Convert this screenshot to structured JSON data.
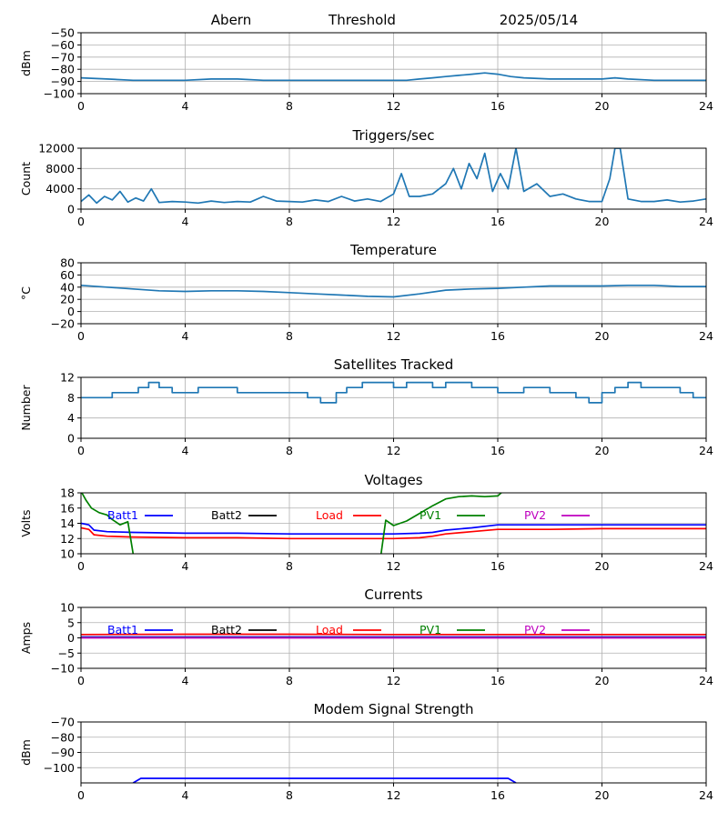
{
  "header": {
    "station": "Abern",
    "threshold_label": "Threshold",
    "date": "2025/05/14"
  },
  "colors": {
    "main": "#1f77b4",
    "batt1": "#0000ff",
    "batt2": "#000000",
    "load": "#ff0000",
    "pv1": "#008000",
    "pv2": "#bf00bf",
    "grid": "#b0b0b0"
  },
  "chart_data": [
    {
      "type": "line",
      "title": "",
      "ylabel": "dBm",
      "xlim": [
        0,
        24
      ],
      "ylim": [
        -100,
        -50
      ],
      "xticks": [
        0,
        4,
        8,
        12,
        16,
        20,
        24
      ],
      "yticks": [
        -100,
        -90,
        -80,
        -70,
        -60,
        -50
      ],
      "grid": true,
      "series": [
        {
          "color": "#1f77b4",
          "x": [
            0,
            1,
            2,
            3,
            4,
            5,
            6,
            7,
            8,
            9,
            10,
            11,
            12,
            12.5,
            13,
            13.5,
            14,
            14.5,
            15,
            15.5,
            16,
            16.5,
            17,
            18,
            19,
            20,
            20.5,
            21,
            22,
            23,
            24
          ],
          "y": [
            -87,
            -88,
            -89,
            -89,
            -89,
            -88,
            -88,
            -89,
            -89,
            -89,
            -89,
            -89,
            -89,
            -89,
            -88,
            -87,
            -86,
            -85,
            -84,
            -83,
            -84,
            -86,
            -87,
            -88,
            -88,
            -88,
            -87,
            -88,
            -89,
            -89,
            -89
          ]
        }
      ]
    },
    {
      "type": "line",
      "title": "Triggers/sec",
      "ylabel": "Count",
      "xlim": [
        0,
        24
      ],
      "ylim": [
        0,
        12000
      ],
      "xticks": [
        0,
        4,
        8,
        12,
        16,
        20,
        24
      ],
      "yticks": [
        0,
        4000,
        8000,
        12000
      ],
      "grid": true,
      "series": [
        {
          "color": "#1f77b4",
          "x": [
            0,
            0.3,
            0.6,
            0.9,
            1.2,
            1.5,
            1.8,
            2.1,
            2.4,
            2.7,
            3,
            3.5,
            4,
            4.5,
            5,
            5.5,
            6,
            6.5,
            7,
            7.5,
            8,
            8.5,
            9,
            9.5,
            10,
            10.5,
            11,
            11.5,
            12,
            12.3,
            12.6,
            13,
            13.5,
            14,
            14.3,
            14.6,
            14.9,
            15.2,
            15.5,
            15.8,
            16.1,
            16.4,
            16.7,
            17,
            17.5,
            18,
            18.5,
            19,
            19.5,
            20,
            20.3,
            20.5,
            20.7,
            21,
            21.5,
            22,
            22.5,
            23,
            23.5,
            24
          ],
          "y": [
            1500,
            2800,
            1200,
            2500,
            1800,
            3500,
            1400,
            2200,
            1600,
            4000,
            1300,
            1500,
            1400,
            1200,
            1600,
            1300,
            1500,
            1400,
            2500,
            1600,
            1500,
            1400,
            1800,
            1500,
            2500,
            1600,
            2000,
            1500,
            3000,
            7000,
            2500,
            2500,
            3000,
            5000,
            8000,
            4000,
            9000,
            6000,
            11000,
            3500,
            7000,
            4000,
            12000,
            3500,
            5000,
            2500,
            3000,
            2000,
            1500,
            1500,
            6000,
            12000,
            12000,
            2000,
            1500,
            1500,
            1800,
            1400,
            1600,
            2000
          ]
        }
      ]
    },
    {
      "type": "line",
      "title": "Temperature",
      "ylabel": "°C",
      "xlim": [
        0,
        24
      ],
      "ylim": [
        -20,
        80
      ],
      "xticks": [
        0,
        4,
        8,
        12,
        16,
        20,
        24
      ],
      "yticks": [
        -20,
        0,
        20,
        40,
        60,
        80
      ],
      "grid": true,
      "series": [
        {
          "color": "#1f77b4",
          "x": [
            0,
            1,
            2,
            3,
            4,
            5,
            6,
            7,
            8,
            9,
            10,
            11,
            12,
            13,
            14,
            15,
            16,
            17,
            18,
            19,
            20,
            21,
            22,
            23,
            24
          ],
          "y": [
            43,
            40,
            37,
            34,
            33,
            34,
            34,
            33,
            31,
            29,
            27,
            25,
            24,
            29,
            35,
            37,
            38,
            40,
            42,
            42,
            42,
            43,
            43,
            41,
            41
          ]
        }
      ]
    },
    {
      "type": "line",
      "title": "Satellites Tracked",
      "ylabel": "Number",
      "xlim": [
        0,
        24
      ],
      "ylim": [
        0,
        12
      ],
      "xticks": [
        0,
        4,
        8,
        12,
        16,
        20,
        24
      ],
      "yticks": [
        0,
        4,
        8,
        12
      ],
      "grid": true,
      "series": [
        {
          "color": "#1f77b4",
          "step": true,
          "x": [
            0,
            0.7,
            1.2,
            1.8,
            2.2,
            2.6,
            3.0,
            3.5,
            4.0,
            4.5,
            5.0,
            5.5,
            6.0,
            6.5,
            7.0,
            7.5,
            8.0,
            8.7,
            9.2,
            9.8,
            10.2,
            10.8,
            11.5,
            12.0,
            12.5,
            13.0,
            13.5,
            14.0,
            14.5,
            15.0,
            15.5,
            16.0,
            16.5,
            17.0,
            17.5,
            18.0,
            18.5,
            19.0,
            19.5,
            20.0,
            20.5,
            21.0,
            21.5,
            22.0,
            22.5,
            23.0,
            23.5,
            24
          ],
          "y": [
            8,
            8,
            9,
            9,
            10,
            11,
            10,
            9,
            9,
            10,
            10,
            10,
            9,
            9,
            9,
            9,
            9,
            8,
            7,
            9,
            10,
            11,
            11,
            10,
            11,
            11,
            10,
            11,
            11,
            10,
            10,
            9,
            9,
            10,
            10,
            9,
            9,
            8,
            7,
            9,
            10,
            11,
            10,
            10,
            10,
            9,
            8,
            8
          ]
        }
      ]
    },
    {
      "type": "line",
      "title": "Voltages",
      "ylabel": "Volts",
      "xlim": [
        0,
        24
      ],
      "ylim": [
        10,
        18
      ],
      "xticks": [
        0,
        4,
        8,
        12,
        16,
        20,
        24
      ],
      "yticks": [
        10,
        12,
        14,
        16,
        18
      ],
      "grid": true,
      "series": [
        {
          "name": "Batt1",
          "color": "#0000ff",
          "x": [
            0,
            0.3,
            0.5,
            1,
            2,
            4,
            6,
            8,
            10,
            12,
            13,
            13.5,
            14,
            15,
            16,
            17,
            18,
            20,
            22,
            24
          ],
          "y": [
            14,
            13.8,
            13.1,
            12.9,
            12.8,
            12.7,
            12.7,
            12.6,
            12.6,
            12.6,
            12.7,
            12.8,
            13.1,
            13.4,
            13.8,
            13.8,
            13.8,
            13.8,
            13.8,
            13.8
          ]
        },
        {
          "name": "Batt2",
          "color": "#000000",
          "x": [],
          "y": []
        },
        {
          "name": "Load",
          "color": "#ff0000",
          "x": [
            0,
            0.3,
            0.5,
            1,
            2,
            4,
            6,
            8,
            10,
            12,
            13,
            13.5,
            14,
            15,
            16,
            17,
            18,
            20,
            22,
            24
          ],
          "y": [
            13.4,
            13.2,
            12.5,
            12.3,
            12.2,
            12.1,
            12.1,
            12.0,
            12.0,
            12.0,
            12.1,
            12.3,
            12.6,
            12.9,
            13.2,
            13.2,
            13.2,
            13.3,
            13.3,
            13.3
          ]
        },
        {
          "name": "PV1",
          "color": "#008000",
          "x": [
            0,
            0.2,
            0.4,
            0.7,
            1.0,
            1.2,
            1.5,
            1.8,
            2.0,
            2.2,
            11.5,
            11.7,
            12.0,
            12.5,
            13.0,
            13.5,
            14.0,
            14.5,
            15.0,
            15.5,
            16.0,
            16.2
          ],
          "y": [
            18.2,
            17.0,
            16.0,
            15.4,
            15.1,
            14.5,
            13.8,
            14.2,
            10.0,
            9.5,
            9.5,
            14.4,
            13.7,
            14.3,
            15.3,
            16.3,
            17.2,
            17.5,
            17.6,
            17.5,
            17.6,
            18.2
          ]
        },
        {
          "name": "PV2",
          "color": "#bf00bf",
          "x": [],
          "y": []
        }
      ]
    },
    {
      "type": "line",
      "title": "Currents",
      "ylabel": "Amps",
      "xlim": [
        0,
        24
      ],
      "ylim": [
        -10,
        10
      ],
      "xticks": [
        0,
        4,
        8,
        12,
        16,
        20,
        24
      ],
      "yticks": [
        -10,
        -5,
        0,
        5,
        10
      ],
      "grid": true,
      "series": [
        {
          "name": "Batt1",
          "color": "#0000ff",
          "x": [
            0,
            24
          ],
          "y": [
            0.3,
            0.3
          ]
        },
        {
          "name": "Batt2",
          "color": "#000000",
          "x": [],
          "y": []
        },
        {
          "name": "Load",
          "color": "#ff0000",
          "x": [
            0,
            4,
            8,
            12,
            16,
            20,
            24
          ],
          "y": [
            1.1,
            1.2,
            1.2,
            1.1,
            1.1,
            1.1,
            1.1
          ]
        },
        {
          "name": "PV1",
          "color": "#008000",
          "x": [
            0,
            24
          ],
          "y": [
            0.1,
            0.1
          ]
        },
        {
          "name": "PV2",
          "color": "#bf00bf",
          "x": [
            0,
            24
          ],
          "y": [
            0,
            0
          ]
        }
      ]
    },
    {
      "type": "line",
      "title": "Modem Signal Strength",
      "ylabel": "dBm",
      "xlim": [
        0,
        24
      ],
      "ylim": [
        -110,
        -70
      ],
      "xticks": [
        0,
        4,
        8,
        12,
        16,
        20,
        24
      ],
      "yticks": [
        -100,
        -90,
        -80,
        -70
      ],
      "grid": true,
      "series": [
        {
          "color": "#0000ff",
          "x": [
            2.0,
            2.3,
            4,
            8,
            12,
            16,
            16.4,
            16.7
          ],
          "y": [
            -110,
            -107,
            -107,
            -107,
            -107,
            -107,
            -107,
            -110
          ]
        }
      ]
    }
  ]
}
